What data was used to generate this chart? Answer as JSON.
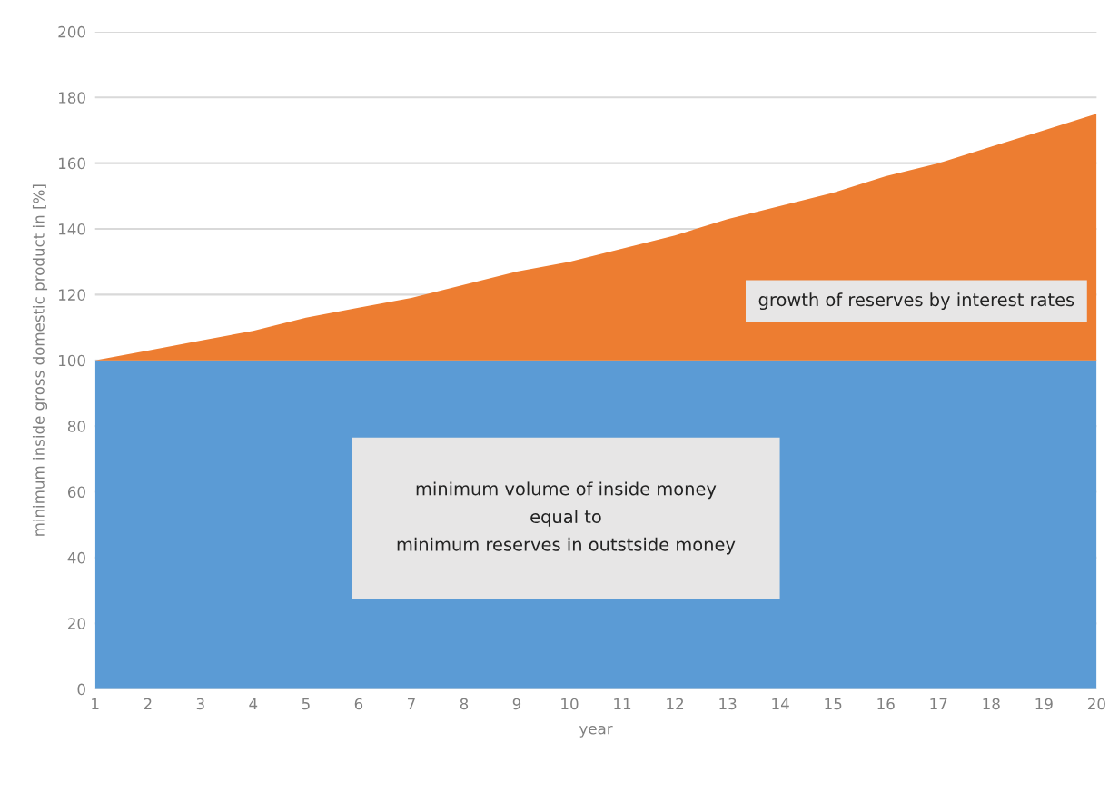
{
  "chart_data": {
    "type": "area",
    "stacked": true,
    "categories": [
      "1",
      "2",
      "3",
      "4",
      "5",
      "6",
      "7",
      "8",
      "9",
      "10",
      "11",
      "12",
      "13",
      "14",
      "15",
      "16",
      "17",
      "18",
      "19",
      "20"
    ],
    "series": [
      {
        "color": "#5b9bd5",
        "values": [
          100,
          100,
          100,
          100,
          100,
          100,
          100,
          100,
          100,
          100,
          100,
          100,
          100,
          100,
          100,
          100,
          100,
          100,
          100,
          100
        ]
      },
      {
        "color": "#ed7d31",
        "values": [
          0,
          3,
          6,
          9,
          13,
          16,
          19,
          23,
          27,
          30,
          34,
          38,
          43,
          47,
          51,
          56,
          60,
          65,
          70,
          75
        ]
      }
    ],
    "xlabel": "year",
    "ylabel": "minimum inside gross domestic product in [%]",
    "ylim": [
      0,
      200
    ],
    "yticks": [
      0,
      20,
      40,
      60,
      80,
      100,
      120,
      140,
      160,
      180,
      200
    ],
    "grid": "y",
    "annotations": [
      "minimum volume of inside money\nequal to\nminimum reserves in outstside money",
      "growth of reserves by interest rates"
    ]
  }
}
